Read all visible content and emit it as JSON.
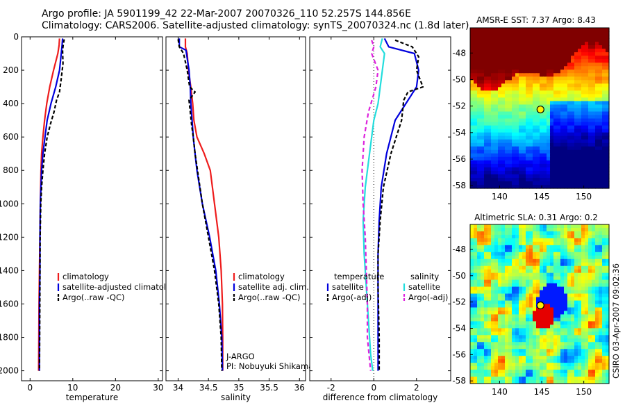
{
  "header": {
    "line1": "Argo profile: JA 5901199_42 22-Mar-2007 20070326_110 52.257S 144.856E",
    "line2": "Climatology: CARS2006. Satellite-adjusted climatology: synTS_20070324.nc (1.8d later)"
  },
  "colors": {
    "climatology": "#ee1c1c",
    "satellite": "#0000dd",
    "argo": "#000000",
    "satellite_diff": "#22dddd",
    "argo_diff": "#dd22dd"
  },
  "chart_data": [
    {
      "type": "line",
      "id": "temperature",
      "xlabel": "temperature",
      "ylabel": "",
      "xlim": [
        -2,
        31
      ],
      "ylim": [
        2060,
        0
      ],
      "xticks": [
        0,
        10,
        20,
        30
      ],
      "yticks": [
        0,
        200,
        400,
        600,
        800,
        1000,
        1200,
        1400,
        1600,
        1800,
        2000
      ],
      "legend": [
        "climatology",
        "satellite-adjusted climatology",
        "Argo(..raw -QC)"
      ],
      "legend_placement": "lower-right",
      "series": [
        {
          "name": "climatology",
          "color": "#ee1c1c",
          "dash": "",
          "x": [
            6.9,
            6.8,
            6.5,
            5.5,
            4.6,
            3.9,
            3.4,
            3.0,
            2.7,
            2.55,
            2.4,
            2.3,
            2.2,
            2.1,
            2.05,
            2.0
          ],
          "y": [
            10,
            50,
            100,
            200,
            300,
            400,
            500,
            600,
            700,
            800,
            1000,
            1200,
            1400,
            1600,
            1800,
            2000
          ]
        },
        {
          "name": "satellite-adjusted climatology",
          "color": "#0000dd",
          "dash": "",
          "x": [
            7.6,
            7.5,
            7.3,
            6.9,
            6.0,
            4.9,
            4.0,
            3.5,
            3.0,
            2.7,
            2.4,
            2.3,
            2.3,
            2.2,
            2.2,
            2.2
          ],
          "y": [
            10,
            50,
            100,
            200,
            300,
            400,
            500,
            600,
            700,
            800,
            1000,
            1200,
            1400,
            1600,
            1800,
            2000
          ]
        },
        {
          "name": "Argo(..raw -QC)",
          "color": "#000000",
          "dash": "5,3",
          "x": [
            8.0,
            7.8,
            7.6,
            7.7,
            7.3,
            6.9,
            6.2,
            5.6,
            4.8,
            4.0,
            3.4,
            3.0,
            2.7,
            2.5,
            2.35,
            2.3,
            2.25,
            2.2
          ],
          "y": [
            15,
            40,
            80,
            160,
            250,
            330,
            380,
            450,
            520,
            600,
            700,
            800,
            900,
            1000,
            1200,
            1500,
            1800,
            2000
          ]
        }
      ],
      "annotations": []
    },
    {
      "type": "line",
      "id": "salinity",
      "xlabel": "salinity",
      "ylabel": "",
      "xlim": [
        33.8,
        36.1
      ],
      "ylim": [
        2060,
        0
      ],
      "xticks": [
        34,
        34.5,
        35,
        35.5,
        36
      ],
      "yticks": [],
      "legend": [
        "climatology",
        "satellite adj. clim.",
        "Argo(..raw -QC)"
      ],
      "legend_placement": "lower-right",
      "series": [
        {
          "name": "climatology",
          "color": "#ee1c1c",
          "dash": "",
          "x": [
            34.12,
            34.12,
            34.15,
            34.17,
            34.21,
            34.24,
            34.26,
            34.31,
            34.43,
            34.53,
            34.6,
            34.67,
            34.71,
            34.73,
            34.735,
            34.735
          ],
          "y": [
            10,
            60,
            100,
            200,
            300,
            400,
            500,
            600,
            700,
            800,
            1000,
            1200,
            1400,
            1600,
            1800,
            2000
          ]
        },
        {
          "name": "satellite adj. clim.",
          "color": "#0000dd",
          "dash": "",
          "x": [
            34.02,
            34.02,
            34.13,
            34.18,
            34.2,
            34.21,
            34.23,
            34.25,
            34.28,
            34.31,
            34.4,
            34.52,
            34.62,
            34.68,
            34.72,
            34.73
          ],
          "y": [
            10,
            60,
            80,
            200,
            300,
            400,
            500,
            600,
            700,
            800,
            1000,
            1200,
            1400,
            1600,
            1800,
            2000
          ]
        },
        {
          "name": "Argo(..raw -QC)",
          "color": "#000000",
          "dash": "5,3",
          "x": [
            34.0,
            34.02,
            34.09,
            34.15,
            34.17,
            34.19,
            34.28,
            34.18,
            34.2,
            34.22,
            34.25,
            34.28,
            34.32,
            34.4,
            34.5,
            34.6,
            34.67,
            34.71,
            34.72
          ],
          "y": [
            15,
            60,
            100,
            200,
            250,
            300,
            330,
            380,
            450,
            520,
            600,
            700,
            800,
            1000,
            1200,
            1400,
            1600,
            1800,
            2000
          ]
        }
      ],
      "annotations": [
        "J-ARGO",
        "PI: Nobuyuki Shikama"
      ]
    },
    {
      "type": "line",
      "id": "difference",
      "xlabel": "difference from climatology",
      "ylabel": "",
      "xlim": [
        -3,
        3.6
      ],
      "ylim": [
        2060,
        0
      ],
      "xticks": [
        -2,
        0,
        2
      ],
      "yticks": [],
      "legend_groups": [
        {
          "title": "temperature",
          "items": [
            "satellite",
            "Argo(-adj)"
          ]
        },
        {
          "title": "salinity",
          "items": [
            "satellite",
            "Argo(-adj)"
          ]
        }
      ],
      "legend_placement": "lower-center",
      "series": [
        {
          "name": "temperature satellite",
          "color": "#0000dd",
          "dash": "",
          "x": [
            0.5,
            0.7,
            1.9,
            2.1,
            2.0,
            1.5,
            1.0,
            0.6,
            0.35,
            0.25,
            0.2,
            0.2,
            0.2,
            0.2,
            0.2
          ],
          "y": [
            10,
            60,
            100,
            200,
            300,
            400,
            500,
            700,
            900,
            1100,
            1300,
            1500,
            1700,
            1900,
            2000
          ]
        },
        {
          "name": "temperature Argo(-adj)",
          "color": "#000000",
          "dash": "5,3",
          "x": [
            1.0,
            1.8,
            2.1,
            2.0,
            2.3,
            1.6,
            1.4,
            1.3,
            0.8,
            0.45,
            0.3,
            0.2,
            0.2,
            0.25,
            0.25
          ],
          "y": [
            20,
            60,
            120,
            200,
            300,
            330,
            380,
            500,
            700,
            900,
            1100,
            1300,
            1500,
            1800,
            2000
          ]
        },
        {
          "name": "salinity satellite",
          "color": "#22dddd",
          "dash": "",
          "x": [
            0.4,
            0.3,
            0.5,
            0.4,
            0.3,
            0.2,
            0.0,
            -0.2,
            -0.4,
            -0.5,
            -0.45,
            -0.35,
            -0.25,
            -0.15,
            -0.05
          ],
          "y": [
            10,
            60,
            100,
            200,
            300,
            400,
            500,
            700,
            900,
            1100,
            1300,
            1500,
            1700,
            1900,
            2000
          ]
        },
        {
          "name": "salinity Argo(-adj)",
          "color": "#dd22dd",
          "dash": "6,4",
          "x": [
            -0.1,
            0.0,
            -0.1,
            0.2,
            0.1,
            -0.25,
            -0.45,
            -0.55,
            -0.5,
            -0.4,
            -0.35,
            -0.3,
            -0.3,
            -0.15
          ],
          "y": [
            20,
            60,
            100,
            200,
            300,
            450,
            600,
            800,
            1000,
            1200,
            1400,
            1600,
            1800,
            2000
          ]
        }
      ],
      "annotations": []
    }
  ],
  "maps": [
    {
      "id": "sst",
      "title": "AMSR-E SST: 7.37 Argo: 8.43",
      "xlim": [
        136.5,
        153
      ],
      "ylim": [
        -58.2,
        -46.1
      ],
      "xticks": [
        140,
        145,
        150
      ],
      "yticks": [
        -48,
        -50,
        -52,
        -54,
        -56,
        -58
      ],
      "marker": {
        "lon": 144.856,
        "lat": -52.257
      }
    },
    {
      "id": "sla",
      "title": "Altimetric SLA: 0.31 Argo: 0.2",
      "xlim": [
        136.5,
        153
      ],
      "ylim": [
        -58.2,
        -46.1
      ],
      "xticks": [
        140,
        145,
        150
      ],
      "yticks": [
        -48,
        -50,
        -52,
        -54,
        -56,
        -58
      ],
      "marker": {
        "lon": 144.856,
        "lat": -52.257
      }
    }
  ],
  "credit": "CSIRO 03-Apr-2007 09:02:36"
}
